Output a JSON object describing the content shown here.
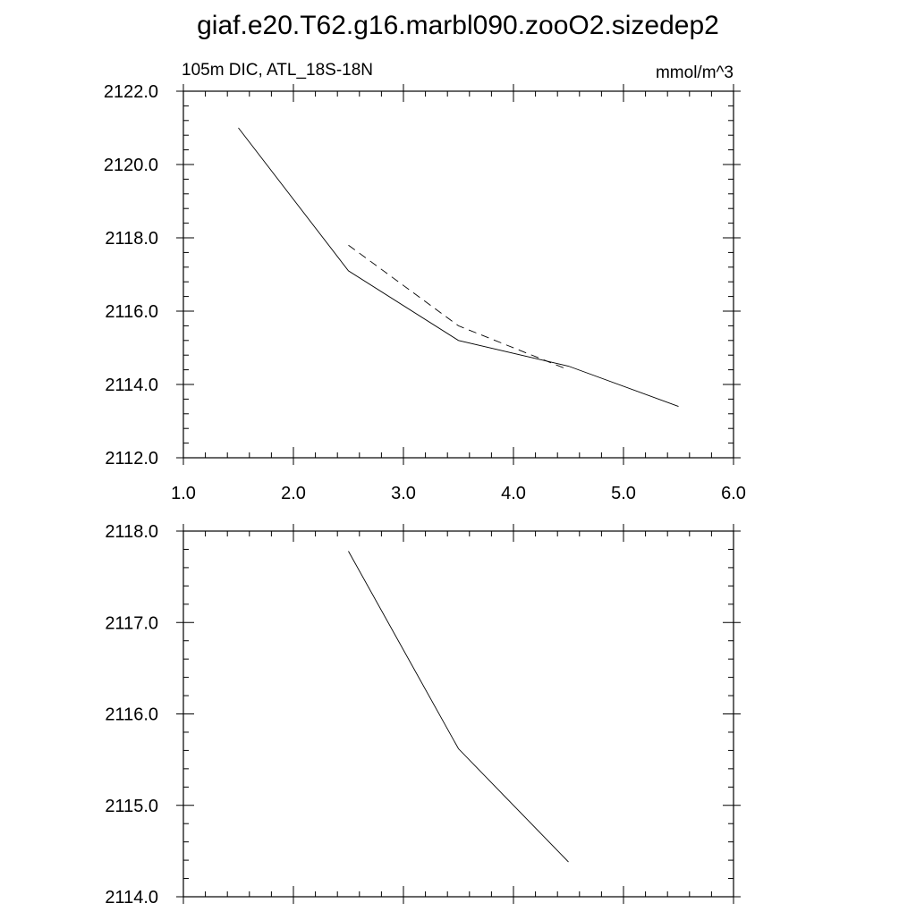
{
  "title": "giaf.e20.T62.g16.marbl090.zooO2.sizedep2",
  "chart_data": [
    {
      "type": "line",
      "left_label": "105m DIC, ATL_18S-18N",
      "right_label": "mmol/m^3",
      "xlim": [
        1.0,
        6.0
      ],
      "ylim": [
        2112.0,
        2122.0
      ],
      "x_ticks": [
        "1.0",
        "2.0",
        "3.0",
        "4.0",
        "5.0",
        "6.0"
      ],
      "y_ticks": [
        "2112.0",
        "2114.0",
        "2116.0",
        "2118.0",
        "2120.0",
        "2122.0"
      ],
      "grid": false,
      "series": [
        {
          "style": "solid",
          "x": [
            1.5,
            2.5,
            3.5,
            4.5,
            5.5
          ],
          "y": [
            2121.0,
            2117.1,
            2115.2,
            2114.5,
            2113.4
          ]
        },
        {
          "style": "dashed",
          "x": [
            2.5,
            3.5,
            4.5
          ],
          "y": [
            2117.8,
            2115.6,
            2114.4
          ]
        }
      ]
    },
    {
      "type": "line",
      "xlim": [
        1.0,
        6.0
      ],
      "ylim": [
        2114.0,
        2118.0
      ],
      "y_ticks": [
        "2114.0",
        "2115.0",
        "2116.0",
        "2117.0",
        "2118.0"
      ],
      "grid": false,
      "series": [
        {
          "style": "solid",
          "x": [
            2.5,
            3.5,
            4.5
          ],
          "y": [
            2117.78,
            2115.62,
            2114.38
          ]
        }
      ]
    }
  ]
}
